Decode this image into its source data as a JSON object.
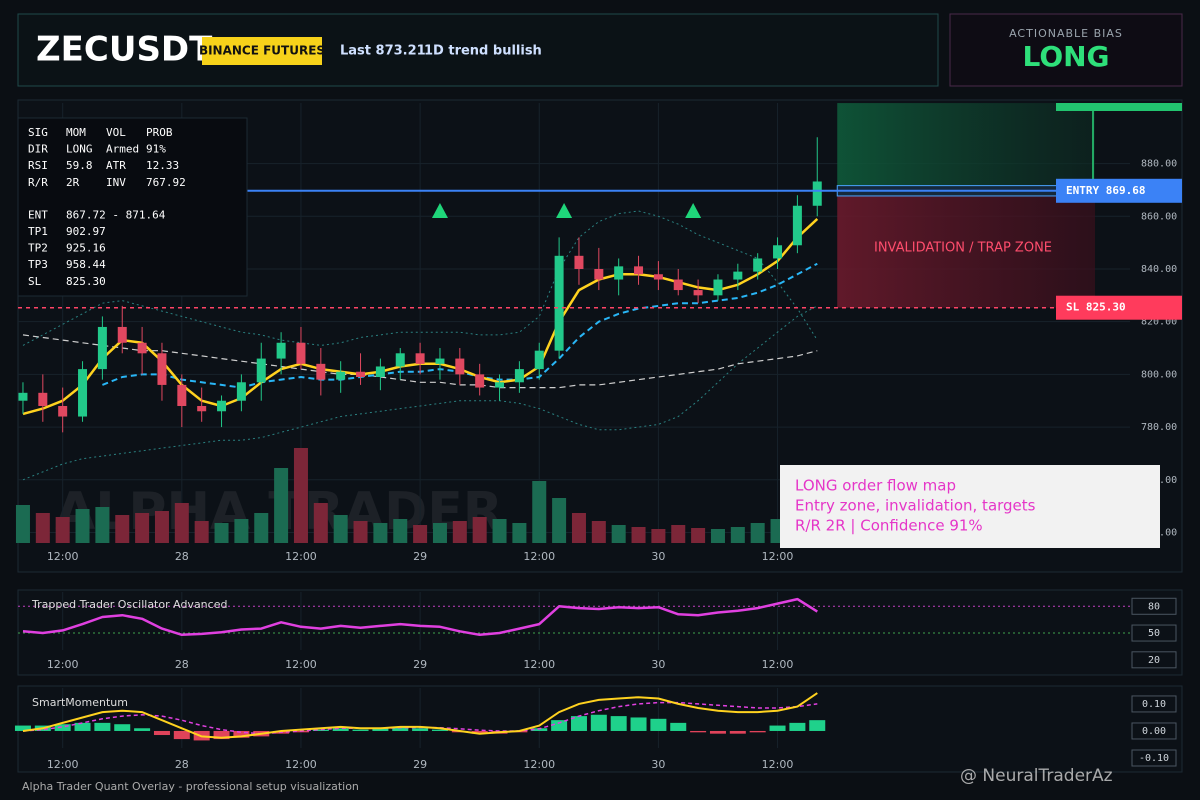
{
  "header": {
    "symbol": "ZECUSDT",
    "exchange": "BINANCE FUTURES",
    "last": "Last 873.21",
    "trend": "1D trend bullish"
  },
  "bias": {
    "label": "ACTIONABLE BIAS",
    "value": "LONG"
  },
  "info_table": {
    "groups": [
      [
        [
          "SIG",
          "MOM",
          "VOL",
          "PROB"
        ],
        [
          "DIR",
          "LONG",
          "Armed",
          "91%"
        ],
        [
          "RSI",
          "59.8",
          "ATR",
          "12.33"
        ],
        [
          "R/R",
          "2R",
          "INV",
          "767.92"
        ]
      ],
      [
        [
          "ENT",
          "867.72 - 871.64"
        ],
        [
          "TP1",
          "902.97"
        ],
        [
          "TP2",
          "925.16"
        ],
        [
          "TP3",
          "958.44"
        ],
        [
          "SL",
          "825.30"
        ]
      ]
    ]
  },
  "note": {
    "lines": [
      "LONG order flow map",
      "Entry zone, invalidation, targets",
      "R/R 2R | Confidence 91%"
    ]
  },
  "watermark": "ALPHA TRADER",
  "footer": "Alpha Trader Quant Overlay - professional setup visualization",
  "credit": "@ NeuralTraderAz",
  "chart_data": [
    {
      "type": "candlestick",
      "x": [
        8,
        10,
        12,
        14,
        16,
        18,
        20,
        22,
        24,
        26,
        28,
        30,
        32,
        34,
        36,
        38,
        40,
        42,
        44,
        46,
        48,
        50,
        52,
        54,
        56,
        58,
        60,
        62,
        64,
        66,
        68,
        70,
        72,
        74,
        76,
        78,
        80,
        82,
        84,
        86,
        88
      ],
      "open": [
        790,
        793,
        788,
        784,
        802,
        818,
        812,
        808,
        796,
        788,
        786,
        790,
        797,
        806,
        812,
        804,
        798,
        801,
        799,
        803,
        808,
        804,
        806,
        800,
        795,
        797,
        802,
        809,
        845,
        840,
        836,
        841,
        838,
        836,
        832,
        830,
        836,
        839,
        844,
        849,
        864
      ],
      "high": [
        797,
        800,
        795,
        805,
        822,
        826,
        818,
        812,
        800,
        795,
        792,
        800,
        812,
        816,
        818,
        810,
        805,
        808,
        806,
        810,
        812,
        810,
        810,
        804,
        800,
        805,
        812,
        852,
        852,
        848,
        844,
        845,
        843,
        840,
        836,
        838,
        842,
        846,
        852,
        868,
        890
      ],
      "low": [
        785,
        782,
        778,
        782,
        798,
        808,
        800,
        790,
        780,
        782,
        780,
        786,
        790,
        800,
        802,
        792,
        793,
        796,
        794,
        798,
        800,
        798,
        796,
        792,
        790,
        793,
        798,
        806,
        834,
        832,
        830,
        834,
        832,
        830,
        827,
        828,
        832,
        836,
        840,
        846,
        860
      ],
      "close": [
        793,
        788,
        784,
        802,
        818,
        812,
        808,
        796,
        788,
        786,
        790,
        797,
        806,
        812,
        804,
        798,
        801,
        799,
        803,
        808,
        804,
        806,
        800,
        795,
        797,
        802,
        809,
        845,
        840,
        836,
        841,
        838,
        836,
        832,
        830,
        836,
        839,
        844,
        849,
        864,
        873.21
      ],
      "volume": [
        38,
        30,
        26,
        34,
        36,
        28,
        30,
        32,
        40,
        22,
        20,
        24,
        30,
        75,
        95,
        40,
        28,
        22,
        20,
        24,
        18,
        20,
        22,
        26,
        24,
        20,
        62,
        45,
        30,
        22,
        18,
        16,
        14,
        18,
        15,
        14,
        16,
        20,
        24,
        32,
        40
      ],
      "vlim": [
        0,
        100
      ],
      "up_color": "#22c98a",
      "down_color": "#e04860",
      "volume_up_color": "#1b6b52",
      "volume_down_color": "#7c2638",
      "lines": [
        {
          "color": "#2a8080",
          "style": "dotted",
          "width": 1,
          "values": [
            811,
            815,
            819,
            823,
            827,
            828,
            826,
            824,
            822,
            820,
            818,
            816,
            815,
            813,
            812,
            811,
            812,
            814,
            815,
            816,
            816,
            816,
            816,
            815,
            815,
            816,
            822,
            840,
            852,
            858,
            861,
            862,
            860,
            857,
            853,
            850,
            847,
            844,
            835,
            825,
            813
          ]
        },
        {
          "color": "#2a8080",
          "style": "dotted",
          "width": 1,
          "values": [
            760,
            763,
            766,
            768,
            769,
            770,
            771,
            772,
            773,
            774,
            775,
            775,
            776,
            778,
            780,
            782,
            784,
            785,
            786,
            787,
            788,
            789,
            790,
            790,
            790,
            789,
            787,
            784,
            781,
            779,
            779,
            780,
            781,
            784,
            790,
            797,
            804,
            810,
            816,
            822,
            826
          ]
        },
        {
          "color": "#cfcfcf",
          "style": "dashed",
          "width": 1.2,
          "values": [
            815,
            814,
            813,
            812,
            811,
            810,
            809,
            809,
            808,
            807,
            806,
            805,
            804,
            803,
            802,
            801,
            800,
            800,
            799,
            798,
            797,
            797,
            796,
            796,
            795,
            795,
            795,
            795,
            796,
            796,
            797,
            798,
            799,
            800,
            801,
            802,
            804,
            805,
            806,
            807,
            809
          ]
        },
        {
          "color": "#29b6f6",
          "style": "dashed",
          "width": 2,
          "values": [
            null,
            null,
            null,
            null,
            796,
            799,
            800,
            800,
            798,
            797,
            796,
            795,
            797,
            798,
            799,
            798,
            798,
            799,
            800,
            801,
            801,
            802,
            801,
            799,
            798,
            798,
            799,
            806,
            814,
            820,
            823,
            825,
            826,
            827,
            827,
            828,
            829,
            831,
            834,
            838,
            842
          ]
        },
        {
          "color": "#ffd21f",
          "style": "solid",
          "width": 2.5,
          "values": [
            785,
            787,
            790,
            796,
            806,
            813,
            812,
            805,
            796,
            790,
            788,
            791,
            797,
            802,
            804,
            802,
            801,
            800,
            801,
            803,
            804,
            804,
            802,
            799,
            797,
            798,
            803,
            820,
            832,
            836,
            838,
            838,
            837,
            835,
            833,
            832,
            834,
            838,
            843,
            852,
            859
          ]
        }
      ],
      "levels": {
        "entry": 869.68,
        "entry_low": 867.72,
        "entry_high": 871.64,
        "stop": 825.3,
        "tp1": 902.97
      },
      "entry_tag": "ENTRY 869.68",
      "stop_tag": "SL 825.30",
      "zone_label": "INVALIDATION / TRAP ZONE",
      "signals": {
        "x": [
          50,
          62.5,
          75.5
        ],
        "y": [
          862,
          862,
          862
        ],
        "color": "#1fd67a"
      },
      "xlim": [
        7.5,
        119.5
      ],
      "xticks": [
        {
          "value": 12,
          "label": "12:00"
        },
        {
          "value": 24,
          "label": "28"
        },
        {
          "value": 36,
          "label": "12:00"
        },
        {
          "value": 48,
          "label": "29"
        },
        {
          "value": 60,
          "label": "12:00"
        },
        {
          "value": 72,
          "label": "30"
        },
        {
          "value": 84,
          "label": "12:00"
        }
      ],
      "ylim": [
        736,
        903
      ],
      "yticks": [
        {
          "value": 880,
          "label": "880.00"
        },
        {
          "value": 860,
          "label": "860.00"
        },
        {
          "value": 840,
          "label": "840.00"
        },
        {
          "value": 820,
          "label": "820.00"
        },
        {
          "value": 800,
          "label": "800.00"
        },
        {
          "value": 780,
          "label": "780.00"
        },
        {
          "value": 760,
          "label": "760.00"
        },
        {
          "value": 740,
          "label": "740.00"
        }
      ],
      "grid": true
    },
    {
      "type": "line",
      "title": "Trapped Trader Oscillator Advanced",
      "values": [
        52,
        50,
        53,
        60,
        68,
        70,
        66,
        55,
        48,
        49,
        51,
        54,
        55,
        62,
        57,
        55,
        58,
        56,
        58,
        60,
        58,
        57,
        52,
        48,
        50,
        55,
        60,
        80,
        78,
        77,
        79,
        78,
        79,
        71,
        70,
        73,
        75,
        78,
        83,
        88,
        74
      ],
      "color": "#e040e0",
      "ylim": [
        31,
        96
      ],
      "yticks": [
        80,
        50,
        20
      ],
      "ref_lines": [
        {
          "value": 80,
          "color": "#c040c0"
        },
        {
          "value": 50,
          "color": "#3fa34d"
        }
      ]
    },
    {
      "type": "macd",
      "title": "SmartMomentum",
      "histogram": [
        0.02,
        0.02,
        0.025,
        0.03,
        0.03,
        0.025,
        0.01,
        -0.015,
        -0.03,
        -0.035,
        -0.03,
        -0.025,
        -0.02,
        -0.01,
        -0.005,
        0.005,
        0.01,
        0.005,
        0.01,
        0.015,
        0.01,
        0.005,
        -0.005,
        -0.01,
        -0.01,
        -0.005,
        0.01,
        0.04,
        0.055,
        0.06,
        0.055,
        0.05,
        0.045,
        0.03,
        -0.005,
        -0.01,
        -0.01,
        -0.005,
        0.02,
        0.03,
        0.04
      ],
      "fast": [
        0.0,
        0.01,
        0.03,
        0.05,
        0.07,
        0.075,
        0.07,
        0.04,
        0.01,
        -0.02,
        -0.025,
        -0.02,
        -0.01,
        0.0,
        0.005,
        0.01,
        0.015,
        0.01,
        0.01,
        0.015,
        0.015,
        0.01,
        0.0,
        -0.01,
        -0.005,
        0.0,
        0.02,
        0.07,
        0.1,
        0.115,
        0.12,
        0.125,
        0.12,
        0.1,
        0.085,
        0.075,
        0.07,
        0.07,
        0.075,
        0.09,
        0.14
      ],
      "slow": [
        0.0,
        0.005,
        0.015,
        0.03,
        0.045,
        0.055,
        0.06,
        0.055,
        0.04,
        0.02,
        0.005,
        -0.005,
        -0.01,
        -0.005,
        0.0,
        0.005,
        0.01,
        0.01,
        0.01,
        0.012,
        0.013,
        0.012,
        0.008,
        0.003,
        0.0,
        0.0,
        0.008,
        0.03,
        0.055,
        0.075,
        0.09,
        0.1,
        0.105,
        0.105,
        0.1,
        0.095,
        0.09,
        0.085,
        0.085,
        0.09,
        0.1
      ],
      "up_color": "#1fd18b",
      "down_color": "#e0435a",
      "fast_color": "#ffd21f",
      "slow_color": "#e040e0",
      "ylim": [
        -0.063,
        0.159
      ],
      "yticks": [
        {
          "value": 0.1,
          "label": "0.10"
        },
        {
          "value": 0,
          "label": "0.00"
        },
        {
          "value": -0.1,
          "label": "-0.10"
        }
      ]
    }
  ]
}
